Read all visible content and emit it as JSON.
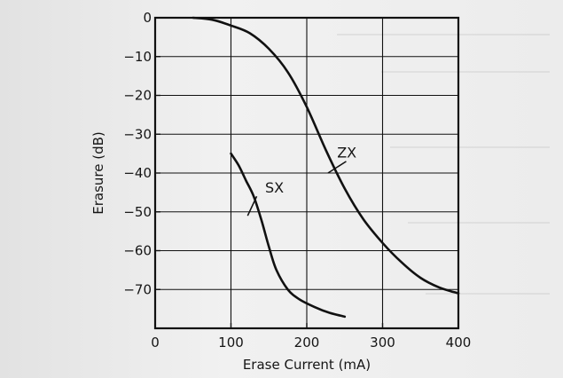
{
  "chart_data": {
    "type": "line",
    "title": "",
    "xlabel": "Erase Current (mA)",
    "ylabel": "Erasure (dB)",
    "xlim": [
      0,
      400
    ],
    "ylim": [
      -80,
      0
    ],
    "x_ticks": [
      0,
      100,
      200,
      300,
      400
    ],
    "y_ticks": [
      0,
      -10,
      -20,
      -30,
      -40,
      -50,
      -60,
      -70
    ],
    "x_tick_labels": [
      "0",
      "100",
      "200",
      "300",
      "400"
    ],
    "y_tick_labels": [
      "0",
      "−10",
      "−20",
      "−30",
      "−40",
      "−50",
      "−60",
      "−70"
    ],
    "grid": true,
    "series": [
      {
        "name": "ZX",
        "x": [
          50,
          75,
          100,
          125,
          150,
          175,
          200,
          225,
          250,
          275,
          300,
          325,
          350,
          375,
          400
        ],
        "y": [
          0,
          -0.5,
          -2,
          -4,
          -8,
          -14,
          -23,
          -34,
          -44,
          -52,
          -58,
          -63,
          -67,
          -69.5,
          -71
        ]
      },
      {
        "name": "SX",
        "x": [
          100,
          110,
          120,
          130,
          140,
          150,
          160,
          175,
          190,
          210,
          230,
          250
        ],
        "y": [
          -35,
          -38,
          -42,
          -46,
          -52,
          -59,
          -65,
          -70,
          -72.5,
          -74.5,
          -76,
          -77
        ]
      }
    ],
    "series_labels": [
      {
        "text": "ZX",
        "x": 240,
        "y": -36
      },
      {
        "text": "SX",
        "x": 145,
        "y": -45
      }
    ],
    "colors": {
      "line": "#111111",
      "grid": "#111111",
      "background": "#ececec"
    }
  }
}
